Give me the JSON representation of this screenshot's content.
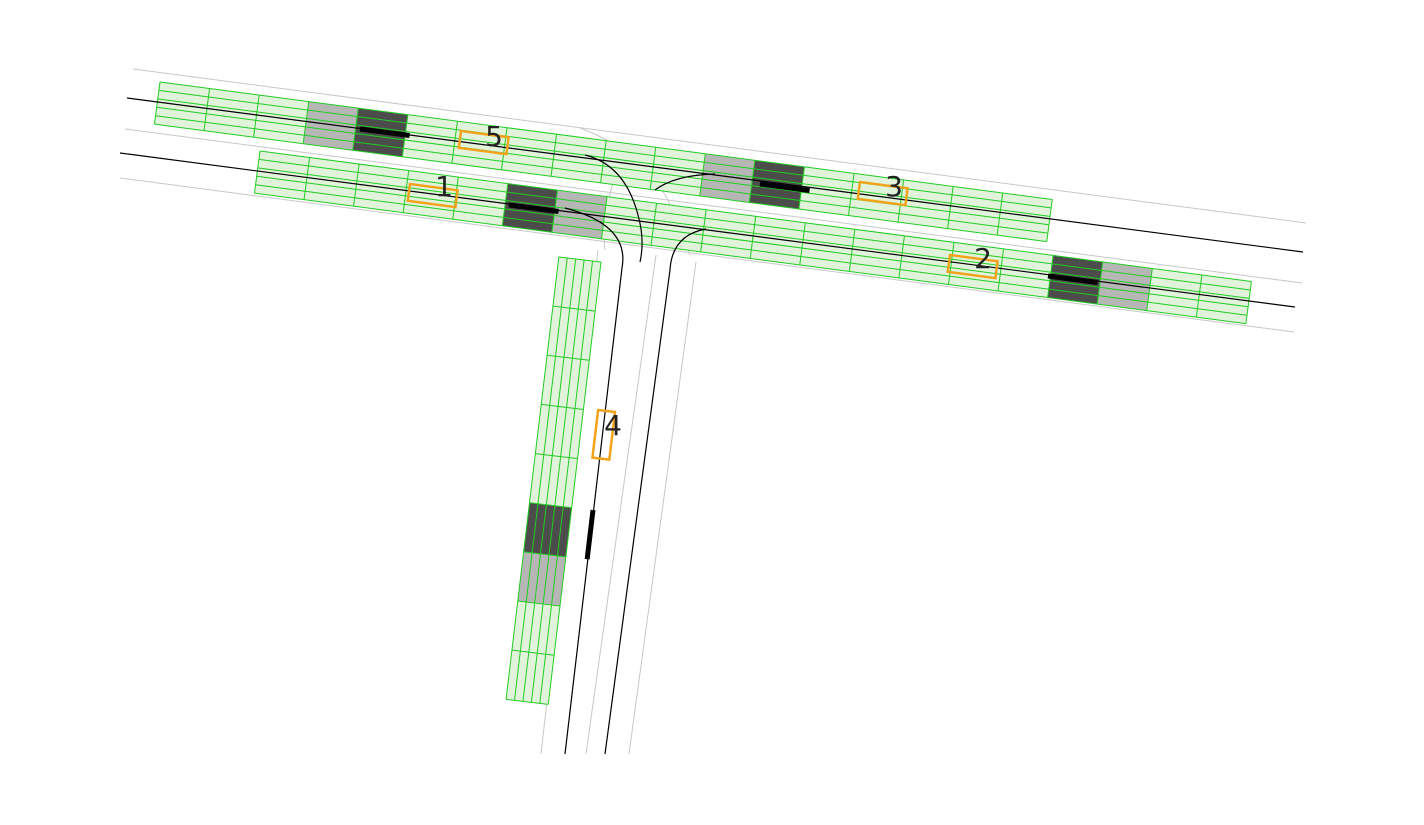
{
  "colors": {
    "background": "#ffffff",
    "road_edge": "#c8c8c8",
    "centerline": "#000000",
    "grid_stroke": "#22cc22",
    "grid_fill": "#e2f3dc",
    "occupancy_light": "#b6b6b6",
    "occupancy_dark": "#4c4c4c",
    "agent_box": "#f2a31b"
  },
  "agents": [
    {
      "id": "1",
      "label": "1"
    },
    {
      "id": "2",
      "label": "2"
    },
    {
      "id": "3",
      "label": "3"
    },
    {
      "id": "4",
      "label": "4"
    },
    {
      "id": "5",
      "label": "5"
    }
  ]
}
